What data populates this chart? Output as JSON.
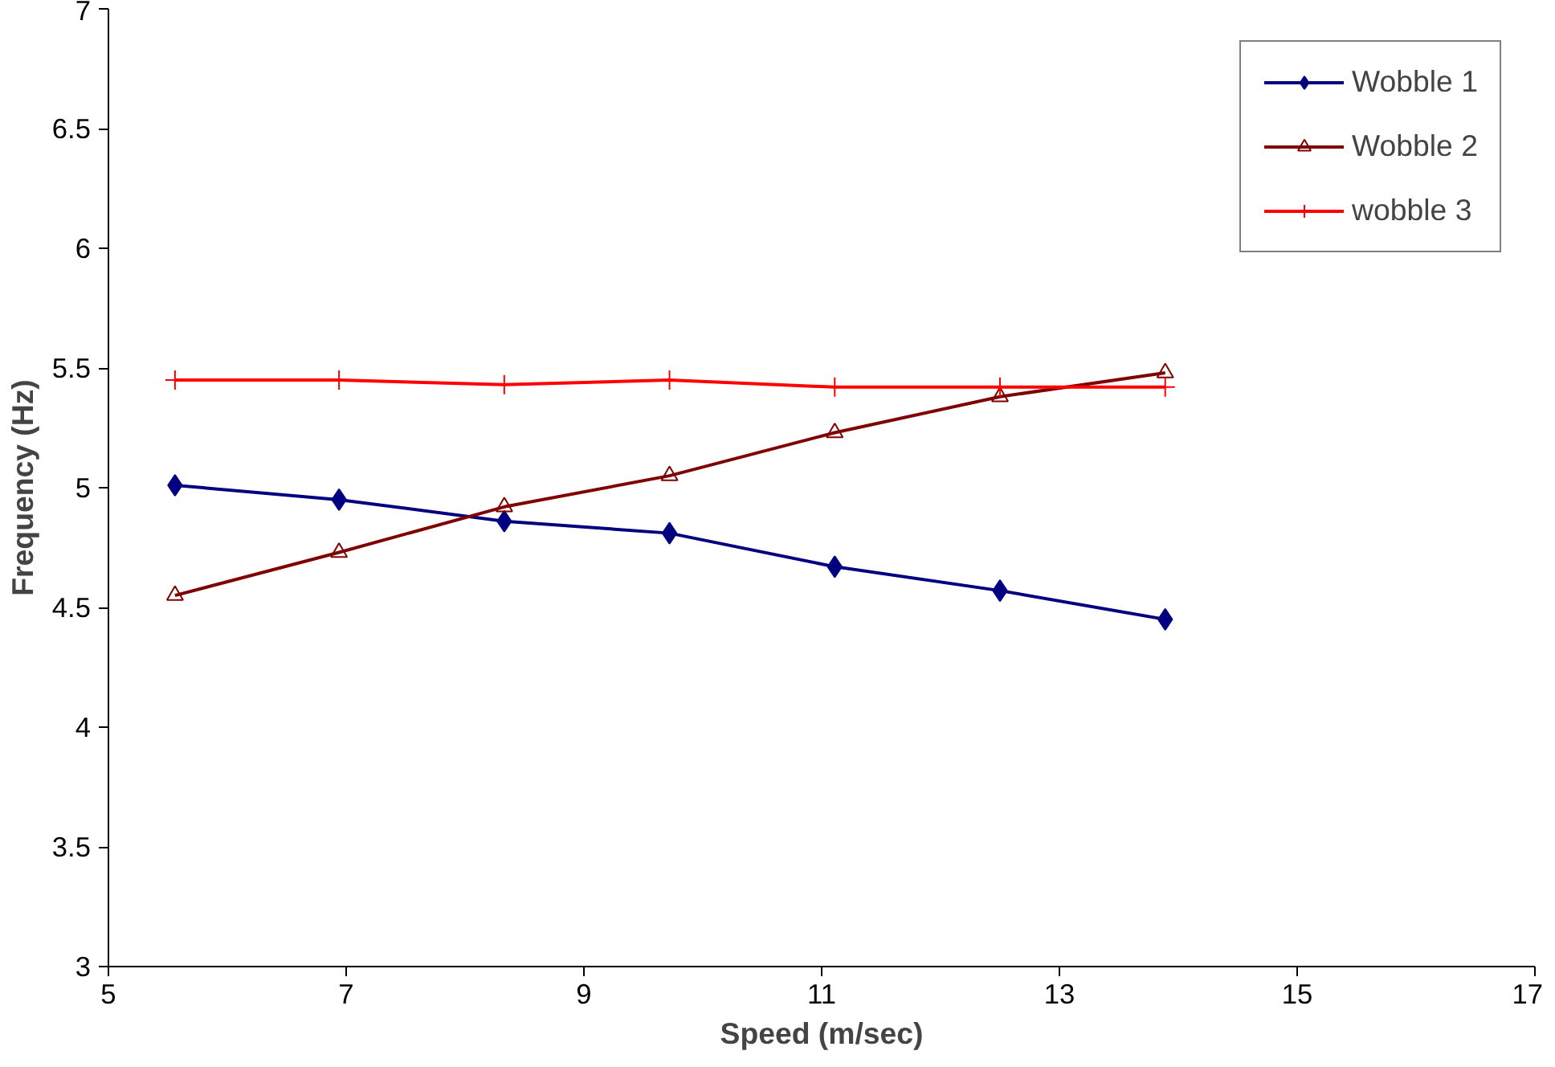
{
  "chart_data": {
    "type": "line",
    "xlabel": "Speed (m/sec)",
    "ylabel": "Frequency (Hz)",
    "xlim": [
      5,
      17
    ],
    "xticks": [
      5,
      7,
      9,
      11,
      13,
      15,
      17
    ],
    "ylim": [
      3,
      7
    ],
    "yticks": [
      3,
      3.5,
      4,
      4.5,
      5,
      5.5,
      6,
      6.5,
      7
    ],
    "grid": false,
    "legend": "top right",
    "line_style": "solid",
    "series": [
      {
        "name": "Wobble 1",
        "color": "#000080",
        "marker": "diamond",
        "x": [
          5.56,
          6.94,
          8.33,
          9.72,
          11.11,
          12.5,
          13.89
        ],
        "values": [
          5.01,
          4.95,
          4.86,
          4.81,
          4.67,
          4.57,
          4.45
        ]
      },
      {
        "name": "Wobble 2",
        "color": "#800000",
        "marker": "triangle",
        "x": [
          5.56,
          6.94,
          8.33,
          9.72,
          11.11,
          12.5,
          13.89
        ],
        "values": [
          4.55,
          4.73,
          4.92,
          5.05,
          5.23,
          5.38,
          5.48
        ]
      },
      {
        "name": "wobble 3",
        "color": "#ff0000",
        "marker": "cross",
        "x": [
          5.56,
          6.94,
          8.33,
          9.72,
          11.11,
          12.5,
          13.89
        ],
        "values": [
          5.45,
          5.45,
          5.43,
          5.45,
          5.42,
          5.42,
          5.42
        ]
      }
    ]
  }
}
